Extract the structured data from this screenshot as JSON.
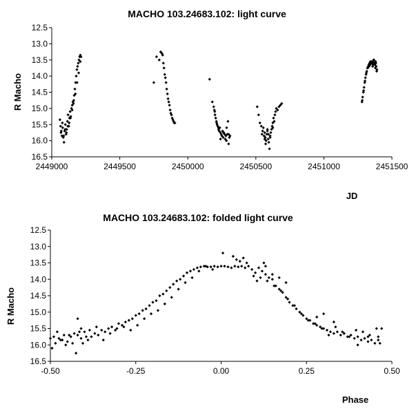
{
  "chart_data": [
    {
      "type": "scatter",
      "title": "MACHO 103.24683.102: light curve",
      "xlabel": "JD",
      "ylabel": "R Macho",
      "xlim": [
        2449000,
        2451500
      ],
      "ylim": [
        16.5,
        12.5
      ],
      "y_inverted": true,
      "xticks": [
        "2449000",
        "2449500",
        "2450000",
        "2450500",
        "2451000",
        "2451500"
      ],
      "yticks": [
        "12.5",
        "13.0",
        "13.5",
        "14.0",
        "14.5",
        "15.0",
        "15.5",
        "16.0",
        "16.5"
      ],
      "grid": false,
      "legend": "none",
      "marker_color": "#000000",
      "series": [
        {
          "x": [
            2449060,
            2449065,
            2449070,
            2449075,
            2449080,
            2449085,
            2449090,
            2449095,
            2449100,
            2449105,
            2449110,
            2449115,
            2449120,
            2449125,
            2449130,
            2449135,
            2449140,
            2449145,
            2449150,
            2449155,
            2449160,
            2449165,
            2449170,
            2449175,
            2449180,
            2449185,
            2449190,
            2449195,
            2449200,
            2449205,
            2449210,
            2449215,
            2449068,
            2449078,
            2449088,
            2449098,
            2449108,
            2449118,
            2449128,
            2449138,
            2449150,
            2449162,
            2449174,
            2449186,
            2449198,
            2449210,
            2449750,
            2449770,
            2449790,
            2449800,
            2449810,
            2449815,
            2449820,
            2449825,
            2449830,
            2449835,
            2449840,
            2449845,
            2449850,
            2449855,
            2449860,
            2449865,
            2449870,
            2449875,
            2449880,
            2449885,
            2449890,
            2449895,
            2449900,
            2449905,
            2450160,
            2450180,
            2450190,
            2450195,
            2450200,
            2450205,
            2450210,
            2450215,
            2450220,
            2450225,
            2450230,
            2450235,
            2450240,
            2450245,
            2450250,
            2450255,
            2450260,
            2450265,
            2450270,
            2450275,
            2450280,
            2450285,
            2450290,
            2450295,
            2450300,
            2450305,
            2450310,
            2450198,
            2450212,
            2450226,
            2450240,
            2450262,
            2450284,
            2450300,
            2450510,
            2450520,
            2450530,
            2450540,
            2450550,
            2450555,
            2450560,
            2450565,
            2450570,
            2450575,
            2450580,
            2450585,
            2450590,
            2450595,
            2450600,
            2450605,
            2450610,
            2450615,
            2450620,
            2450625,
            2450630,
            2450635,
            2450640,
            2450645,
            2450650,
            2450660,
            2450670,
            2450680,
            2450690,
            2450545,
            2450565,
            2450585,
            2450605,
            2450625,
            2450572,
            2450592,
            2451280,
            2451285,
            2451290,
            2451295,
            2451300,
            2451305,
            2451310,
            2451315,
            2451320,
            2451325,
            2451330,
            2451335,
            2451340,
            2451345,
            2451350,
            2451355,
            2451360,
            2451365,
            2451370,
            2451375,
            2451380,
            2451385,
            2451390,
            2451282,
            2451292,
            2451302,
            2451312,
            2451322,
            2451332,
            2451342,
            2451352,
            2451362,
            2451372,
            2451382,
            2451388,
            2451378,
            2451368,
            2451358
          ],
          "y": [
            15.35,
            15.55,
            15.7,
            15.85,
            15.6,
            15.9,
            16.05,
            15.7,
            15.5,
            15.8,
            15.65,
            15.4,
            15.2,
            15.55,
            15.3,
            15.1,
            15.25,
            15.0,
            14.9,
            14.8,
            14.85,
            14.6,
            14.4,
            14.2,
            14.0,
            13.8,
            13.7,
            13.6,
            13.5,
            13.4,
            13.35,
            13.4,
            15.75,
            15.45,
            15.85,
            15.65,
            15.75,
            15.55,
            15.45,
            15.3,
            15.05,
            14.75,
            14.55,
            14.2,
            13.9,
            13.55,
            14.2,
            13.4,
            13.5,
            13.25,
            13.3,
            13.35,
            13.6,
            13.75,
            13.95,
            14.05,
            14.2,
            14.4,
            14.55,
            14.7,
            14.8,
            14.9,
            15.05,
            15.15,
            15.2,
            15.3,
            15.35,
            15.4,
            15.45,
            15.45,
            14.1,
            14.8,
            14.95,
            15.05,
            15.2,
            15.3,
            15.4,
            15.5,
            15.55,
            15.6,
            15.7,
            15.6,
            15.75,
            15.8,
            15.85,
            15.7,
            15.9,
            15.75,
            15.8,
            15.95,
            15.85,
            15.6,
            15.8,
            15.4,
            15.8,
            15.9,
            15.85,
            15.1,
            15.45,
            15.65,
            15.95,
            15.75,
            16.0,
            16.1,
            14.95,
            15.2,
            15.45,
            15.55,
            15.7,
            15.6,
            15.85,
            15.75,
            15.9,
            16.0,
            15.8,
            15.7,
            15.95,
            16.05,
            16.25,
            15.85,
            15.75,
            15.65,
            15.55,
            15.45,
            15.3,
            15.4,
            15.2,
            15.1,
            15.0,
            15.05,
            14.95,
            14.9,
            14.85,
            15.8,
            15.95,
            15.65,
            15.9,
            15.6,
            16.1,
            15.8,
            14.8,
            14.65,
            14.5,
            14.35,
            14.2,
            14.05,
            13.95,
            13.85,
            13.75,
            13.7,
            13.65,
            13.6,
            13.65,
            13.6,
            13.55,
            13.6,
            13.55,
            13.5,
            13.6,
            13.65,
            13.55,
            13.7,
            13.8,
            14.75,
            14.45,
            14.15,
            13.9,
            13.75,
            13.7,
            13.55,
            13.6,
            13.65,
            13.6,
            13.6,
            13.85,
            13.75,
            13.5,
            13.7
          ]
        }
      ]
    },
    {
      "type": "scatter",
      "title": "MACHO 103.24683.102: folded light curve",
      "xlabel": "Phase",
      "ylabel": "R Macho",
      "xlim": [
        -0.5,
        0.5
      ],
      "ylim": [
        16.5,
        12.5
      ],
      "y_inverted": true,
      "xticks": [
        "-0.50",
        "-0.25",
        "0.00",
        "0.25",
        "0.50"
      ],
      "yticks": [
        "12.5",
        "13.0",
        "13.5",
        "14.0",
        "14.5",
        "15.0",
        "15.5",
        "16.0",
        "16.5"
      ],
      "grid": false,
      "legend": "none",
      "marker_color": "#000000",
      "series": [
        {
          "x": [
            -0.5,
            -0.49,
            -0.48,
            -0.47,
            -0.46,
            -0.45,
            -0.44,
            -0.43,
            -0.42,
            -0.41,
            -0.4,
            -0.39,
            -0.38,
            -0.37,
            -0.36,
            -0.35,
            -0.34,
            -0.33,
            -0.32,
            -0.31,
            -0.3,
            -0.29,
            -0.28,
            -0.27,
            -0.26,
            -0.25,
            -0.24,
            -0.23,
            -0.22,
            -0.21,
            -0.2,
            -0.19,
            -0.18,
            -0.17,
            -0.16,
            -0.15,
            -0.14,
            -0.13,
            -0.12,
            -0.11,
            -0.1,
            -0.09,
            -0.08,
            -0.07,
            -0.06,
            -0.05,
            -0.04,
            -0.03,
            -0.02,
            -0.01,
            0.0,
            0.01,
            0.02,
            0.03,
            0.04,
            0.05,
            0.06,
            0.07,
            0.08,
            0.09,
            0.1,
            0.11,
            0.12,
            0.13,
            0.14,
            0.15,
            0.16,
            0.17,
            0.18,
            0.19,
            0.2,
            0.21,
            0.22,
            0.23,
            0.24,
            0.25,
            0.26,
            0.27,
            0.28,
            0.29,
            0.3,
            0.31,
            0.32,
            0.33,
            0.34,
            0.35,
            0.36,
            0.37,
            0.38,
            0.39,
            0.4,
            0.41,
            0.42,
            0.43,
            0.44,
            0.45,
            0.46,
            0.47,
            -0.495,
            -0.485,
            -0.475,
            -0.465,
            -0.455,
            -0.445,
            -0.435,
            -0.425,
            -0.415,
            -0.405,
            -0.395,
            -0.385,
            -0.365,
            -0.345,
            -0.325,
            -0.305,
            -0.285,
            -0.265,
            -0.245,
            -0.225,
            -0.205,
            -0.185,
            -0.165,
            -0.145,
            -0.125,
            -0.105,
            -0.085,
            -0.065,
            -0.045,
            -0.025,
            0.005,
            0.035,
            0.055,
            0.075,
            0.095,
            0.115,
            0.135,
            0.155,
            0.175,
            0.195,
            0.215,
            0.235,
            0.255,
            0.275,
            0.295,
            0.315,
            0.335,
            0.355,
            0.375,
            0.395,
            0.415,
            0.435,
            0.455,
            0.465,
            -0.42,
            -0.41,
            0.045,
            0.065,
            0.105,
            0.125,
            0.13,
            0.15,
            0.17,
            0.19,
            0.28,
            0.3,
            0.33,
            0.36,
            0.4,
            0.43,
            0.46
          ],
          "y": [
            15.8,
            15.75,
            15.6,
            15.85,
            15.7,
            15.9,
            15.75,
            15.65,
            15.7,
            15.8,
            15.6,
            15.85,
            15.75,
            15.65,
            15.7,
            15.55,
            15.6,
            15.5,
            15.45,
            15.55,
            15.35,
            15.4,
            15.3,
            15.25,
            15.2,
            15.1,
            15.05,
            14.95,
            14.9,
            14.8,
            14.7,
            14.65,
            14.5,
            14.45,
            14.35,
            14.25,
            14.15,
            14.05,
            14.0,
            13.9,
            13.8,
            13.75,
            13.7,
            13.65,
            13.62,
            13.6,
            13.62,
            13.62,
            13.6,
            13.62,
            13.6,
            13.6,
            13.62,
            13.65,
            13.6,
            13.62,
            13.6,
            13.65,
            13.6,
            13.7,
            13.8,
            13.65,
            13.75,
            13.85,
            13.95,
            14.0,
            14.2,
            14.3,
            14.4,
            14.55,
            14.7,
            14.8,
            14.9,
            15.0,
            15.1,
            15.2,
            15.25,
            15.35,
            15.4,
            15.45,
            15.5,
            15.55,
            15.6,
            15.65,
            15.6,
            15.7,
            15.65,
            15.75,
            15.7,
            15.8,
            15.75,
            15.85,
            15.8,
            15.9,
            15.85,
            15.95,
            15.75,
            15.5,
            16.1,
            15.95,
            15.8,
            15.85,
            16.0,
            15.7,
            15.95,
            16.25,
            15.6,
            15.95,
            15.75,
            15.55,
            15.45,
            15.85,
            15.65,
            15.5,
            15.45,
            15.55,
            15.4,
            15.2,
            15.05,
            14.95,
            14.75,
            14.55,
            14.3,
            14.1,
            13.95,
            13.75,
            13.6,
            13.7,
            13.2,
            13.3,
            13.45,
            13.5,
            13.9,
            13.95,
            14.05,
            14.2,
            14.35,
            14.6,
            14.8,
            15.05,
            15.25,
            15.35,
            15.5,
            15.7,
            15.45,
            15.6,
            15.75,
            15.55,
            15.6,
            15.7,
            15.5,
            15.95,
            15.2,
            15.5,
            13.4,
            13.35,
            14.05,
            13.5,
            13.6,
            13.85,
            13.95,
            14.1,
            15.15,
            15.05,
            15.3,
            15.65,
            16.0,
            15.75,
            15.85
          ]
        }
      ]
    }
  ]
}
